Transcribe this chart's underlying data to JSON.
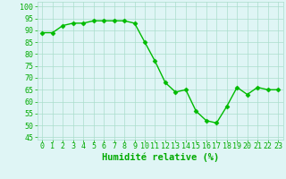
{
  "x": [
    0,
    1,
    2,
    3,
    4,
    5,
    6,
    7,
    8,
    9,
    10,
    11,
    12,
    13,
    14,
    15,
    16,
    17,
    18,
    19,
    20,
    21,
    22,
    23
  ],
  "y": [
    89,
    89,
    92,
    93,
    93,
    94,
    94,
    94,
    94,
    93,
    85,
    77,
    68,
    64,
    65,
    56,
    52,
    51,
    58,
    66,
    63,
    66,
    65,
    65
  ],
  "line_color": "#00bb00",
  "marker": "D",
  "marker_size": 2.5,
  "bg_color": "#dff5f5",
  "grid_color": "#aaddcc",
  "xlabel": "Humidité relative (%)",
  "xlabel_color": "#00aa00",
  "ylabel_ticks": [
    45,
    50,
    55,
    60,
    65,
    70,
    75,
    80,
    85,
    90,
    95,
    100
  ],
  "xlim": [
    -0.5,
    23.5
  ],
  "ylim": [
    44,
    102
  ],
  "tick_color": "#00aa00",
  "label_fontsize": 6,
  "axis_label_fontsize": 7.5,
  "linewidth": 1.0
}
